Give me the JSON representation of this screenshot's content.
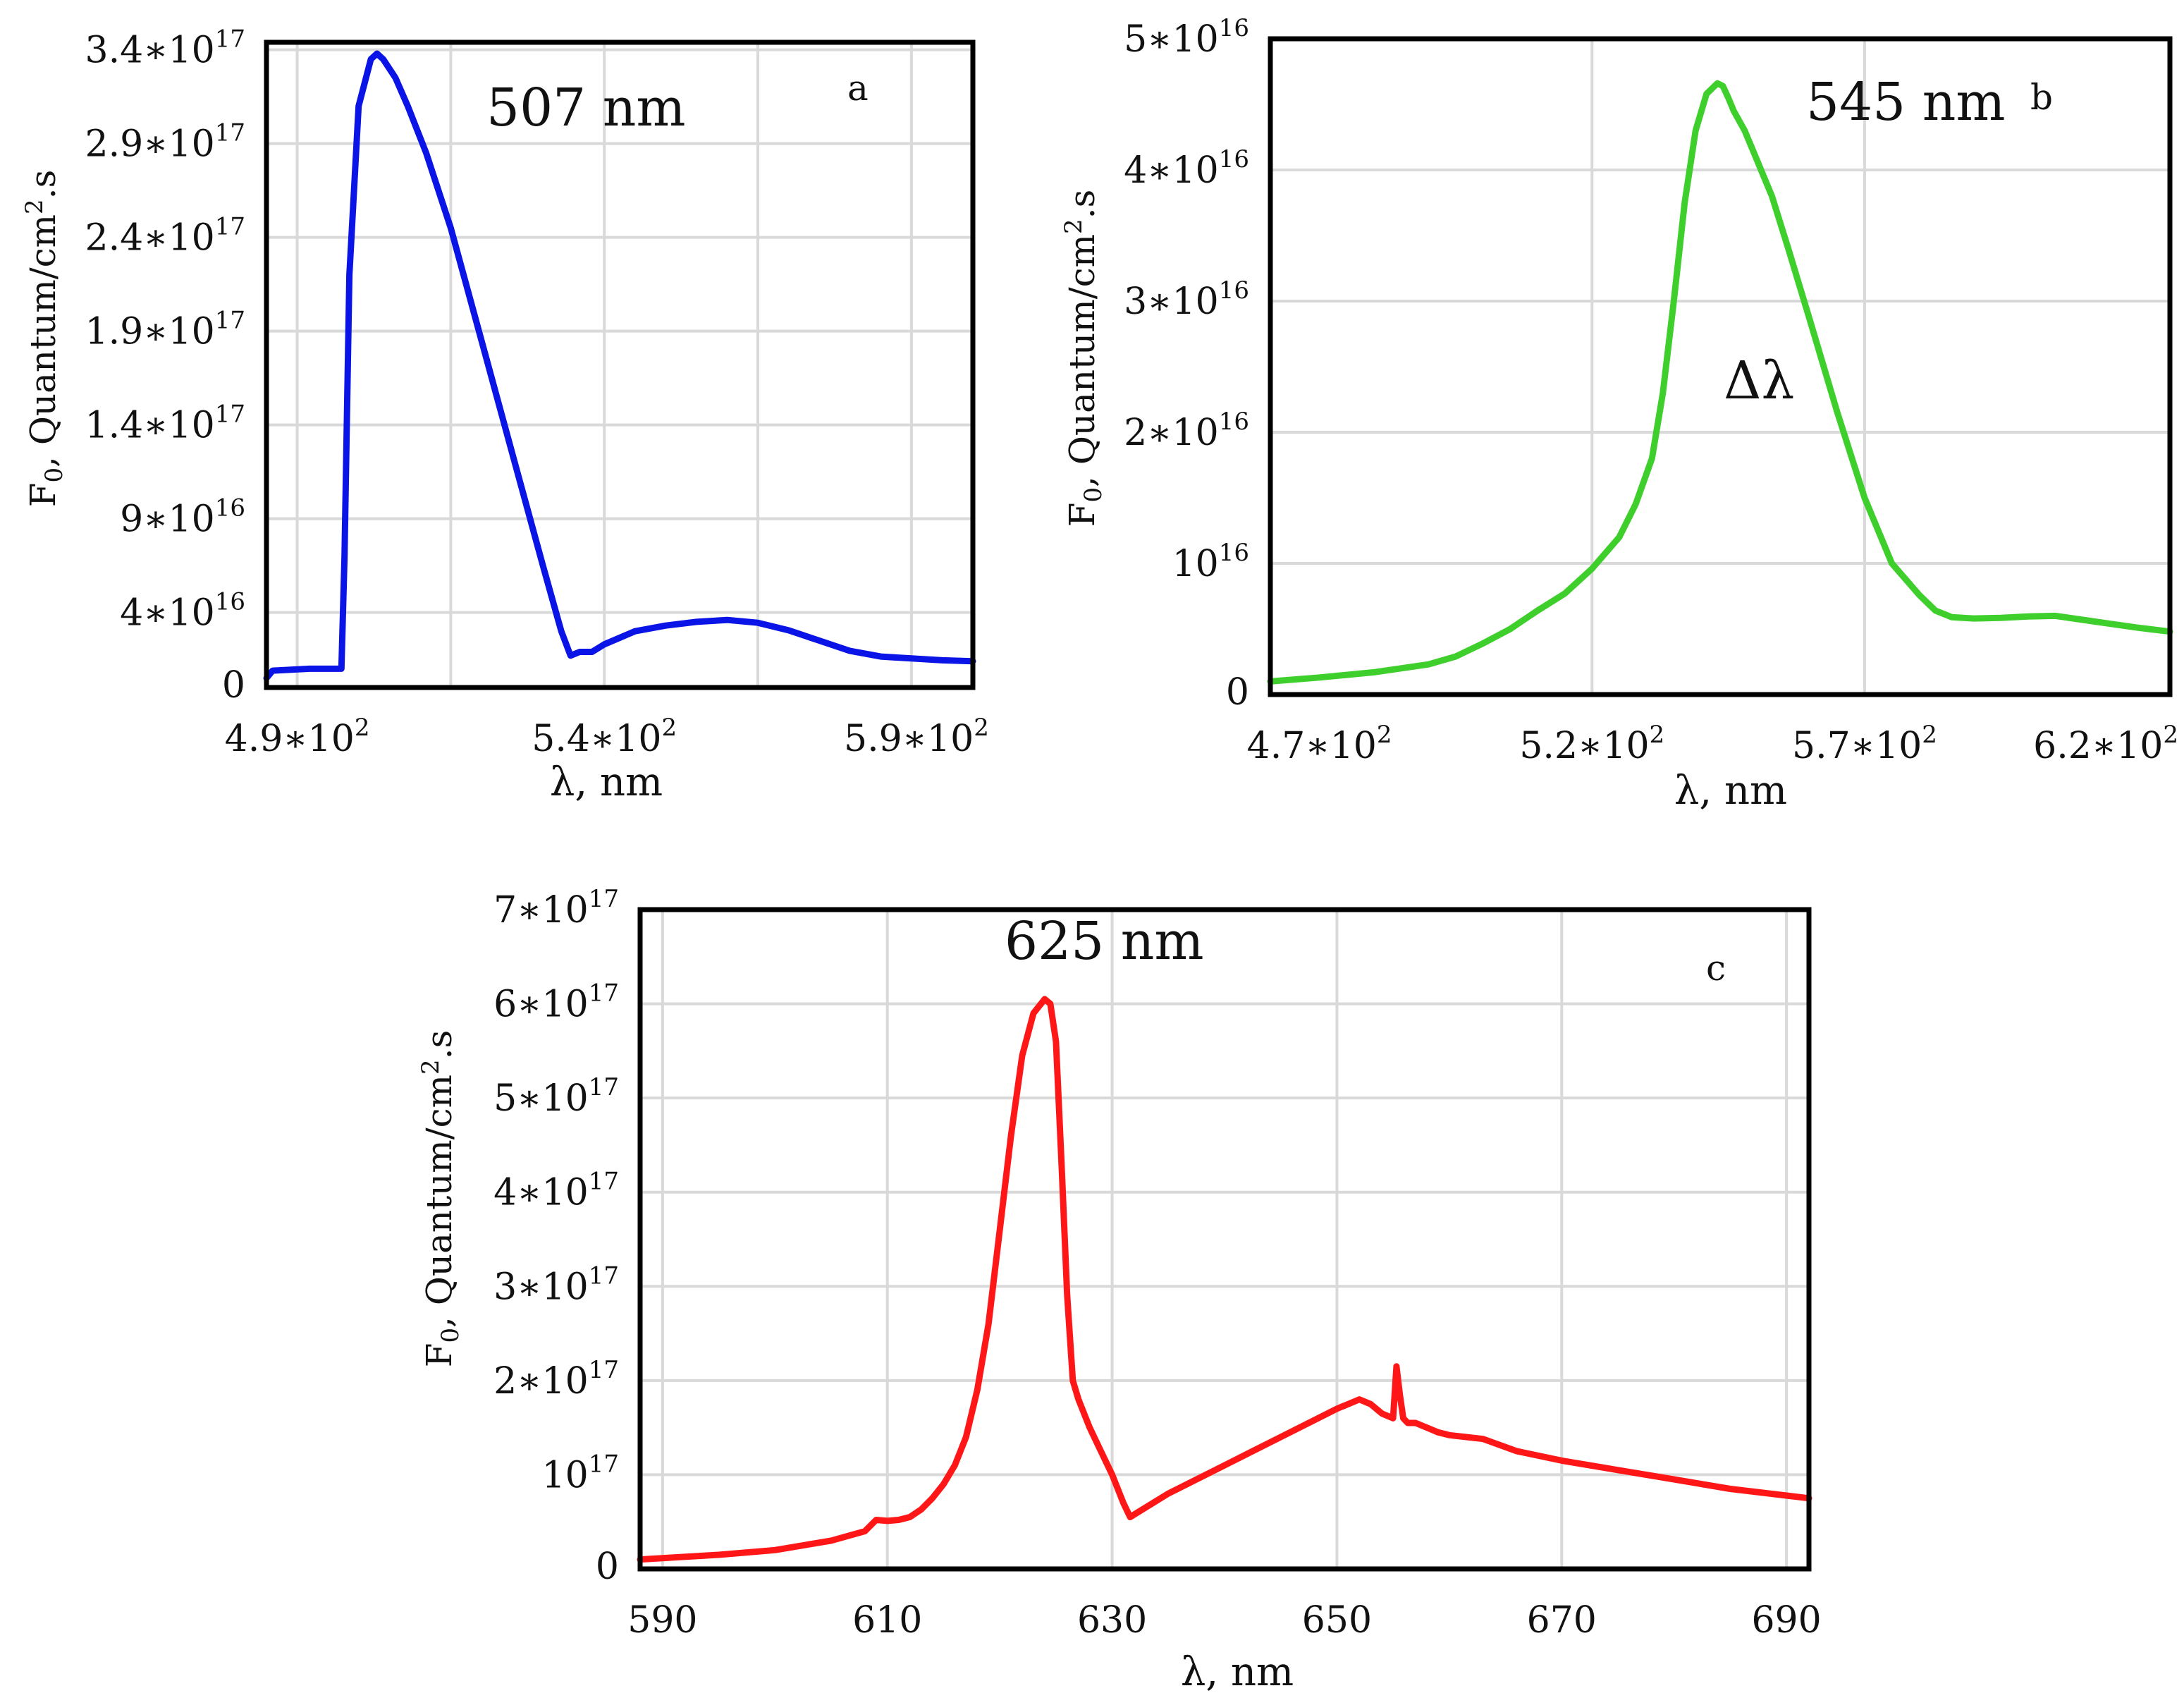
{
  "figure": {
    "exp_separator": "∗",
    "panels": [
      {
        "id": "a",
        "panel_label": "a",
        "peak_label": "507 nm",
        "xlabel": "λ, nm",
        "ylabel_parts": [
          "F",
          "0",
          ", Quantum/cm",
          "2",
          ".s"
        ],
        "color": "#0a14e6",
        "xlim": [
          485,
          600
        ],
        "ylim": [
          0,
          3.44e+17
        ],
        "xgrid": [
          490,
          515,
          540,
          565,
          590
        ],
        "ygrid": [
          0,
          4e+16,
          9e+16,
          1.4e+17,
          1.9e+17,
          2.4e+17,
          2.9e+17,
          3.4e+17
        ],
        "xticks": [
          {
            "value": 490,
            "mant": "4.9",
            "exp": "2"
          },
          {
            "value": 540,
            "mant": "5.4",
            "exp": "2"
          },
          {
            "value": 590,
            "mant": "5.9",
            "exp": "2"
          }
        ],
        "yticks": [
          {
            "value": 0,
            "plain": "0"
          },
          {
            "value": 4e+16,
            "mant": "4",
            "exp": "16"
          },
          {
            "value": 9e+16,
            "mant": "9",
            "exp": "16"
          },
          {
            "value": 1.4e+17,
            "mant": "1.4",
            "exp": "17"
          },
          {
            "value": 1.9e+17,
            "mant": "1.9",
            "exp": "17"
          },
          {
            "value": 2.4e+17,
            "mant": "2.4",
            "exp": "17"
          },
          {
            "value": 2.9e+17,
            "mant": "2.9",
            "exp": "17"
          },
          {
            "value": 3.4e+17,
            "mant": "3.4",
            "exp": "17"
          }
        ]
      },
      {
        "id": "b",
        "panel_label": "b",
        "peak_label": "545 nm",
        "annotation": "Δλ",
        "xlabel": "λ, nm",
        "ylabel_parts": [
          "F",
          "0",
          ", Quantum/cm",
          "2",
          ".s"
        ],
        "color": "#3fcf2d",
        "xlim": [
          461,
          626
        ],
        "ylim": [
          0,
          5e+16
        ],
        "xgrid": [
          520,
          570
        ],
        "ygrid": [
          0,
          1e+16,
          2e+16,
          3e+16,
          4e+16,
          5e+16
        ],
        "xticks": [
          {
            "value": 470,
            "mant": "4.7",
            "exp": "2"
          },
          {
            "value": 520,
            "mant": "5.2",
            "exp": "2"
          },
          {
            "value": 570,
            "mant": "5.7",
            "exp": "2"
          },
          {
            "value": 620,
            "mant": "6.2",
            "exp": "2"
          }
        ],
        "yticks": [
          {
            "value": 0,
            "plain": "0"
          },
          {
            "value": 1e+16,
            "mant": "",
            "exp": "16"
          },
          {
            "value": 2e+16,
            "mant": "2",
            "exp": "16"
          },
          {
            "value": 3e+16,
            "mant": "3",
            "exp": "16"
          },
          {
            "value": 4e+16,
            "mant": "4",
            "exp": "16"
          },
          {
            "value": 5e+16,
            "mant": "5",
            "exp": "16"
          }
        ]
      },
      {
        "id": "c",
        "panel_label": "c",
        "peak_label": "625 nm",
        "xlabel": "λ, nm",
        "ylabel_parts": [
          "F",
          "0",
          ", Quantum/cm",
          "2",
          ".s"
        ],
        "color": "#ff1616",
        "xlim": [
          588,
          692
        ],
        "ylim": [
          0,
          7e+17
        ],
        "xgrid": [
          590,
          610,
          630,
          650,
          670,
          690
        ],
        "ygrid": [
          0,
          1e+17,
          2e+17,
          3e+17,
          4e+17,
          5e+17,
          6e+17,
          7e+17
        ],
        "xticks": [
          {
            "value": 590,
            "plain": "590"
          },
          {
            "value": 610,
            "plain": "610"
          },
          {
            "value": 630,
            "plain": "630"
          },
          {
            "value": 650,
            "plain": "650"
          },
          {
            "value": 670,
            "plain": "670"
          },
          {
            "value": 690,
            "plain": "690"
          }
        ],
        "yticks": [
          {
            "value": 0,
            "plain": "0"
          },
          {
            "value": 1e+17,
            "mant": "",
            "exp": "17"
          },
          {
            "value": 2e+17,
            "mant": "2",
            "exp": "17"
          },
          {
            "value": 3e+17,
            "mant": "3",
            "exp": "17"
          },
          {
            "value": 4e+17,
            "mant": "4",
            "exp": "17"
          },
          {
            "value": 5e+17,
            "mant": "5",
            "exp": "17"
          },
          {
            "value": 6e+17,
            "mant": "6",
            "exp": "17"
          },
          {
            "value": 7e+17,
            "mant": "7",
            "exp": "17"
          }
        ]
      }
    ]
  },
  "chart_data": [
    {
      "type": "line",
      "panel": "a",
      "title": "507 nm",
      "xlabel": "λ, nm",
      "ylabel": "F0, Quantum/cm2.s",
      "xlim": [
        485,
        600
      ],
      "ylim": [
        0,
        3.44e+17
      ],
      "grid": true,
      "series": [
        {
          "name": "507 nm",
          "x": [
            485,
            486,
            492,
            497.2,
            497.7,
            498.5,
            500,
            502,
            503,
            504,
            506,
            508,
            511,
            515,
            520,
            525,
            530,
            533,
            534.5,
            536,
            538,
            540,
            545,
            550,
            555,
            560,
            565,
            570,
            575,
            580,
            585,
            590,
            595,
            600
          ],
          "y": [
            5000000000000000.0,
            9000000000000000.0,
            1e+16,
            1e+16,
            7e+16,
            2.2e+17,
            3.1e+17,
            3.35e+17,
            3.38e+17,
            3.35e+17,
            3.25e+17,
            3.1e+17,
            2.85e+17,
            2.45e+17,
            1.85e+17,
            1.25e+17,
            6.5e+16,
            3e+16,
            1.7e+16,
            1.9e+16,
            1.9e+16,
            2.3e+16,
            3e+16,
            3.3e+16,
            3.5e+16,
            3.6e+16,
            3.45e+16,
            3.05e+16,
            2.5e+16,
            1.95e+16,
            1.65e+16,
            1.55e+16,
            1.45e+16,
            1.4e+16
          ]
        }
      ]
    },
    {
      "type": "line",
      "panel": "b",
      "title": "545 nm",
      "xlabel": "λ, nm",
      "ylabel": "F0, Quantum/cm2.s",
      "xlim": [
        461,
        626
      ],
      "ylim": [
        0,
        5e+16
      ],
      "grid": true,
      "series": [
        {
          "name": "545 nm",
          "x": [
            461,
            470,
            480,
            490,
            495,
            500,
            505,
            510,
            515,
            520,
            525,
            528,
            531,
            533,
            535,
            537,
            539,
            541,
            543,
            544,
            545,
            546,
            548,
            550,
            553,
            556,
            560,
            565,
            570,
            575,
            580,
            583,
            586,
            590,
            595,
            600,
            605,
            610,
            615,
            620,
            626
          ],
          "y": [
            1000000000000000.0,
            1300000000000000.0,
            1700000000000000.0,
            2300000000000000.0,
            2900000000000000.0,
            3900000000000000.0,
            5000000000000000.0,
            6400000000000000.0,
            7700000000000000.0,
            9600000000000000.0,
            1.2e+16,
            1.45e+16,
            1.8e+16,
            2.3e+16,
            3e+16,
            3.75e+16,
            4.3e+16,
            4.58e+16,
            4.66e+16,
            4.64e+16,
            4.55e+16,
            4.45e+16,
            4.3e+16,
            4.1e+16,
            3.8e+16,
            3.4e+16,
            2.85e+16,
            2.15e+16,
            1.5e+16,
            1e+16,
            7600000000000000.0,
            6400000000000000.0,
            5900000000000000.0,
            5800000000000000.0,
            5850000000000000.0,
            5950000000000000.0,
            6000000000000000.0,
            5700000000000000.0,
            5400000000000000.0,
            5100000000000000.0,
            4800000000000000.0
          ]
        }
      ]
    },
    {
      "type": "line",
      "panel": "c",
      "title": "625 nm",
      "xlabel": "λ, nm",
      "ylabel": "F0, Quantum/cm2.s",
      "xlim": [
        588,
        692
      ],
      "ylim": [
        0,
        7e+17
      ],
      "grid": true,
      "series": [
        {
          "name": "625 nm",
          "x": [
            588,
            595,
            600,
            605,
            608,
            609,
            610,
            611,
            612,
            613,
            614,
            615,
            616,
            617,
            618,
            619,
            620,
            621,
            622,
            623,
            624,
            624.5,
            625,
            625.5,
            626,
            626.5,
            627,
            628,
            629,
            630,
            631,
            631.6,
            632,
            635,
            640,
            645,
            650,
            652,
            653,
            654,
            655,
            655.3,
            655.6,
            655.9,
            656.3,
            657,
            658,
            659,
            660,
            663,
            666,
            670,
            675,
            680,
            685,
            692
          ],
          "y": [
            1e+16,
            1.5e+16,
            2e+16,
            3e+16,
            4e+16,
            5.2e+16,
            5.1e+16,
            5.2e+16,
            5.5e+16,
            6.3e+16,
            7.5e+16,
            9e+16,
            1.1e+17,
            1.4e+17,
            1.9e+17,
            2.6e+17,
            3.6e+17,
            4.6e+17,
            5.45e+17,
            5.9e+17,
            6.05e+17,
            6e+17,
            5.6e+17,
            4.3e+17,
            2.9e+17,
            2e+17,
            1.8e+17,
            1.5e+17,
            1.25e+17,
            1e+17,
            7e+16,
            5.5e+16,
            5.8e+16,
            8e+16,
            1.1e+17,
            1.4e+17,
            1.7e+17,
            1.8e+17,
            1.75e+17,
            1.65e+17,
            1.6e+17,
            2.15e+17,
            1.85e+17,
            1.6e+17,
            1.55e+17,
            1.55e+17,
            1.5e+17,
            1.45e+17,
            1.42e+17,
            1.38e+17,
            1.25e+17,
            1.15e+17,
            1.05e+17,
            9.5e+16,
            8.5e+16,
            7.5e+16
          ]
        }
      ]
    }
  ]
}
